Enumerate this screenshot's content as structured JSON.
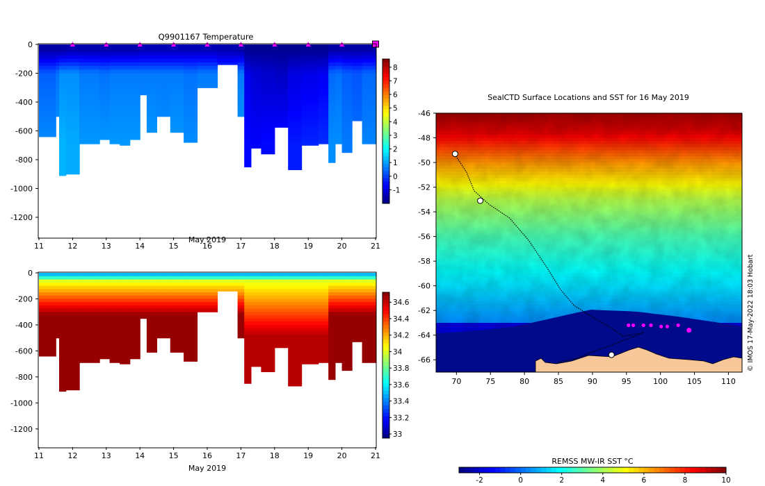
{
  "chart_data": [
    {
      "type": "heatmap",
      "title": "Q9901167  Temperature",
      "xlabel": "May 2019",
      "ylabel": "",
      "xlim": [
        11,
        21
      ],
      "ylim": [
        -1340,
        0
      ],
      "x_ticks": [
        "11",
        "12",
        "13",
        "14",
        "15",
        "16",
        "17",
        "18",
        "19",
        "20",
        "21"
      ],
      "y_ticks": [
        "0",
        "-200",
        "-400",
        "-600",
        "-800",
        "-1000",
        "-1200"
      ],
      "colorbar": {
        "min": -2,
        "max": 8.6,
        "ticks": [
          "8",
          "7",
          "6",
          "5",
          "4",
          "3",
          "2",
          "1",
          "0",
          "-1"
        ],
        "scheme": "jet"
      },
      "surface_markers_day": [
        12,
        13,
        14,
        15,
        16,
        17,
        18,
        19,
        20,
        21
      ],
      "profiles": [
        {
          "day": 11.0,
          "depth": 640,
          "surf": -1.6,
          "mid": 0.3,
          "deep": 0.8
        },
        {
          "day": 11.5,
          "depth": 500,
          "surf": -1.6,
          "mid": 0.5,
          "deep": 0.9
        },
        {
          "day": 11.6,
          "depth": 910,
          "surf": -1.6,
          "mid": 0.8,
          "deep": 1.2
        },
        {
          "day": 11.8,
          "depth": 900,
          "surf": -1.5,
          "mid": 0.8,
          "deep": 1.1
        },
        {
          "day": 12.2,
          "depth": 690,
          "surf": -1.5,
          "mid": 0.6,
          "deep": 0.9
        },
        {
          "day": 12.8,
          "depth": 660,
          "surf": -1.5,
          "mid": 0.5,
          "deep": 0.9
        },
        {
          "day": 13.1,
          "depth": 690,
          "surf": -1.5,
          "mid": 0.6,
          "deep": 0.9
        },
        {
          "day": 13.4,
          "depth": 700,
          "surf": -1.5,
          "mid": 0.6,
          "deep": 0.9
        },
        {
          "day": 13.7,
          "depth": 660,
          "surf": -1.5,
          "mid": 0.6,
          "deep": 0.9
        },
        {
          "day": 14.0,
          "depth": 350,
          "surf": -1.4,
          "mid": 0.6,
          "deep": 0.8
        },
        {
          "day": 14.2,
          "depth": 610,
          "surf": -1.4,
          "mid": 0.6,
          "deep": 0.9
        },
        {
          "day": 14.5,
          "depth": 500,
          "surf": -1.4,
          "mid": 0.6,
          "deep": 0.8
        },
        {
          "day": 14.9,
          "depth": 610,
          "surf": -1.4,
          "mid": 0.6,
          "deep": 0.9
        },
        {
          "day": 15.3,
          "depth": 680,
          "surf": -1.4,
          "mid": 0.5,
          "deep": 0.8
        },
        {
          "day": 15.7,
          "depth": 300,
          "surf": -1.4,
          "mid": 0.6,
          "deep": 0.8
        },
        {
          "day": 16.3,
          "depth": 140,
          "surf": -1.5,
          "mid": 0.3,
          "deep": 0.5
        },
        {
          "day": 16.9,
          "depth": 500,
          "surf": -1.6,
          "mid": 0.6,
          "deep": 0.9
        },
        {
          "day": 17.1,
          "depth": 850,
          "surf": -1.8,
          "mid": -0.9,
          "deep": -0.6
        },
        {
          "day": 17.3,
          "depth": 720,
          "surf": -1.8,
          "mid": -1.1,
          "deep": -0.7
        },
        {
          "day": 17.6,
          "depth": 760,
          "surf": -1.8,
          "mid": -1.2,
          "deep": -0.6
        },
        {
          "day": 18.0,
          "depth": 575,
          "surf": -1.8,
          "mid": -1.3,
          "deep": -0.5
        },
        {
          "day": 18.4,
          "depth": 870,
          "surf": -1.8,
          "mid": -1.0,
          "deep": -0.4
        },
        {
          "day": 18.8,
          "depth": 700,
          "surf": -1.8,
          "mid": -0.9,
          "deep": -0.3
        },
        {
          "day": 19.3,
          "depth": 690,
          "surf": -1.8,
          "mid": -0.8,
          "deep": -0.2
        },
        {
          "day": 19.6,
          "depth": 820,
          "surf": -1.6,
          "mid": 0.4,
          "deep": 0.8
        },
        {
          "day": 19.8,
          "depth": 690,
          "surf": -1.6,
          "mid": 0.5,
          "deep": 0.8
        },
        {
          "day": 20.0,
          "depth": 750,
          "surf": -1.6,
          "mid": 0.3,
          "deep": 0.6
        },
        {
          "day": 20.3,
          "depth": 530,
          "surf": -1.6,
          "mid": 0.2,
          "deep": 0.5
        },
        {
          "day": 20.6,
          "depth": 690,
          "surf": -1.6,
          "mid": 0.4,
          "deep": 0.7
        }
      ]
    },
    {
      "type": "heatmap",
      "title": "",
      "xlabel": "May 2019",
      "ylabel": "",
      "xlim": [
        11,
        21
      ],
      "ylim": [
        -1340,
        0
      ],
      "x_ticks": [
        "11",
        "12",
        "13",
        "14",
        "15",
        "16",
        "17",
        "18",
        "19",
        "20",
        "21"
      ],
      "y_ticks": [
        "0",
        "-200",
        "-400",
        "-600",
        "-800",
        "-1000",
        "-1200"
      ],
      "colorbar": {
        "min": 32.95,
        "max": 34.72,
        "ticks": [
          "34.6",
          "34.4",
          "34.2",
          "34",
          "33.8",
          "33.6",
          "33.4",
          "33.2",
          "33"
        ],
        "scheme": "jet"
      },
      "profiles_same_as_temperature": true
    },
    {
      "type": "heatmap",
      "title": "SealCTD Surface Locations and SST for 16 May 2019",
      "xlabel": "",
      "ylabel": "",
      "xlim": [
        67,
        112
      ],
      "ylim": [
        -67,
        -46
      ],
      "x_ticks": [
        "70",
        "75",
        "80",
        "85",
        "90",
        "95",
        "100",
        "105",
        "110"
      ],
      "y_ticks": [
        "-46",
        "-48",
        "-50",
        "-52",
        "-54",
        "-56",
        "-58",
        "-60",
        "-62",
        "-64",
        "-66"
      ],
      "colorbar": {
        "label": "REMSS MW-IR SST °C",
        "min": -3,
        "max": 10,
        "ticks": [
          "-2",
          "0",
          "2",
          "4",
          "6",
          "8",
          "10"
        ],
        "scheme": "jet",
        "placement": "bottom"
      },
      "credit": "© IMOS 17-May-2022 18:03 Hobart",
      "track": [
        [
          69.6,
          -49.2
        ],
        [
          71.5,
          -50.8
        ],
        [
          72.6,
          -52.3
        ],
        [
          74.8,
          -53.4
        ],
        [
          77.8,
          -54.5
        ],
        [
          80.6,
          -56.3
        ],
        [
          83.4,
          -58.6
        ],
        [
          85.3,
          -60.3
        ],
        [
          87.3,
          -61.6
        ],
        [
          90.2,
          -62.6
        ],
        [
          92.7,
          -63.4
        ],
        [
          94.5,
          -64.1
        ],
        [
          97.5,
          -63.8
        ],
        [
          93.4,
          -64.7
        ],
        [
          90.8,
          -65.2
        ],
        [
          87.5,
          -65.9
        ],
        [
          84.8,
          -66.2
        ]
      ],
      "float_positions": [
        [
          95.3,
          -63.2
        ],
        [
          96.0,
          -63.2
        ],
        [
          97.5,
          -63.2
        ],
        [
          98.6,
          -63.2
        ],
        [
          100.1,
          -63.3
        ],
        [
          101.0,
          -63.3
        ],
        [
          102.6,
          -63.2
        ],
        [
          104.2,
          -63.6
        ]
      ],
      "islands": [
        [
          69.8,
          -49.3
        ],
        [
          73.5,
          -53.1
        ],
        [
          92.8,
          -65.6
        ]
      ]
    }
  ]
}
